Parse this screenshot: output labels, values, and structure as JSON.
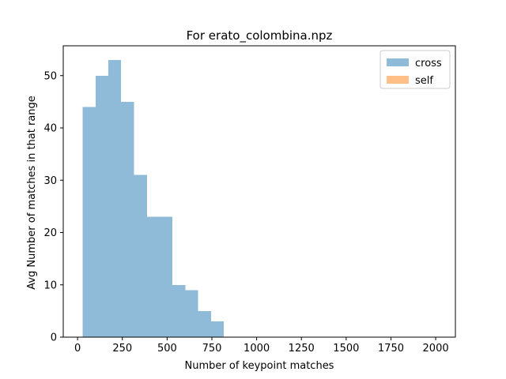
{
  "chart_data": {
    "type": "bar",
    "title": "For erato_colombina.npz",
    "xlabel": "Number of keypoint matches",
    "ylabel": "Avg Number of matches in that range",
    "xlim": [
      -80,
      2110
    ],
    "ylim": [
      0,
      55.7
    ],
    "x_ticks": [
      0,
      250,
      500,
      750,
      1000,
      1250,
      1500,
      1750,
      2000
    ],
    "y_ticks": [
      0,
      10,
      20,
      30,
      40,
      50
    ],
    "legend": {
      "placement": "top-right"
    },
    "series": [
      {
        "name": "cross",
        "color": "#8fbbd9",
        "bins": [
          {
            "x0": 29,
            "x1": 100,
            "value": 44
          },
          {
            "x0": 100,
            "x1": 172,
            "value": 50
          },
          {
            "x0": 172,
            "x1": 243,
            "value": 53
          },
          {
            "x0": 243,
            "x1": 315,
            "value": 45
          },
          {
            "x0": 315,
            "x1": 387,
            "value": 31
          },
          {
            "x0": 387,
            "x1": 530,
            "value": 23
          },
          {
            "x0": 530,
            "x1": 602,
            "value": 10
          },
          {
            "x0": 602,
            "x1": 673,
            "value": 9
          },
          {
            "x0": 673,
            "x1": 745,
            "value": 5
          },
          {
            "x0": 745,
            "x1": 816,
            "value": 3
          }
        ]
      },
      {
        "name": "self",
        "color": "#ffbf86",
        "bins": []
      }
    ]
  }
}
